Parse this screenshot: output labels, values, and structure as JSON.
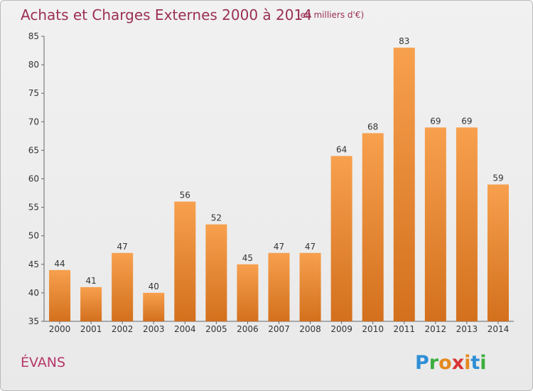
{
  "chart_data": {
    "type": "bar",
    "title": "Achats et Charges Externes 2000 à 2014",
    "subtitle": "(en milliers d'€)",
    "categories": [
      "2000",
      "2001",
      "2002",
      "2003",
      "2004",
      "2005",
      "2006",
      "2007",
      "2008",
      "2009",
      "2010",
      "2011",
      "2012",
      "2013",
      "2014"
    ],
    "values": [
      44,
      41,
      47,
      40,
      56,
      52,
      45,
      47,
      47,
      64,
      68,
      83,
      69,
      69,
      59
    ],
    "ylim": [
      35,
      85
    ],
    "yticks": [
      35,
      40,
      45,
      50,
      55,
      60,
      65,
      70,
      75,
      80,
      85
    ],
    "xlabel": "",
    "ylabel": "",
    "grid": false,
    "bar_color_top": "#f7a04e",
    "bar_color_bottom": "#d3701d"
  },
  "commune": "ÉVANS",
  "brand": {
    "letters": [
      "P",
      "r",
      "o",
      "x",
      "i",
      "t",
      "i"
    ],
    "colors": [
      "#2f8fd6",
      "#3cae3c",
      "#e5891e",
      "#d83535",
      "#e5891e",
      "#2f8fd6",
      "#3cae3c"
    ]
  }
}
